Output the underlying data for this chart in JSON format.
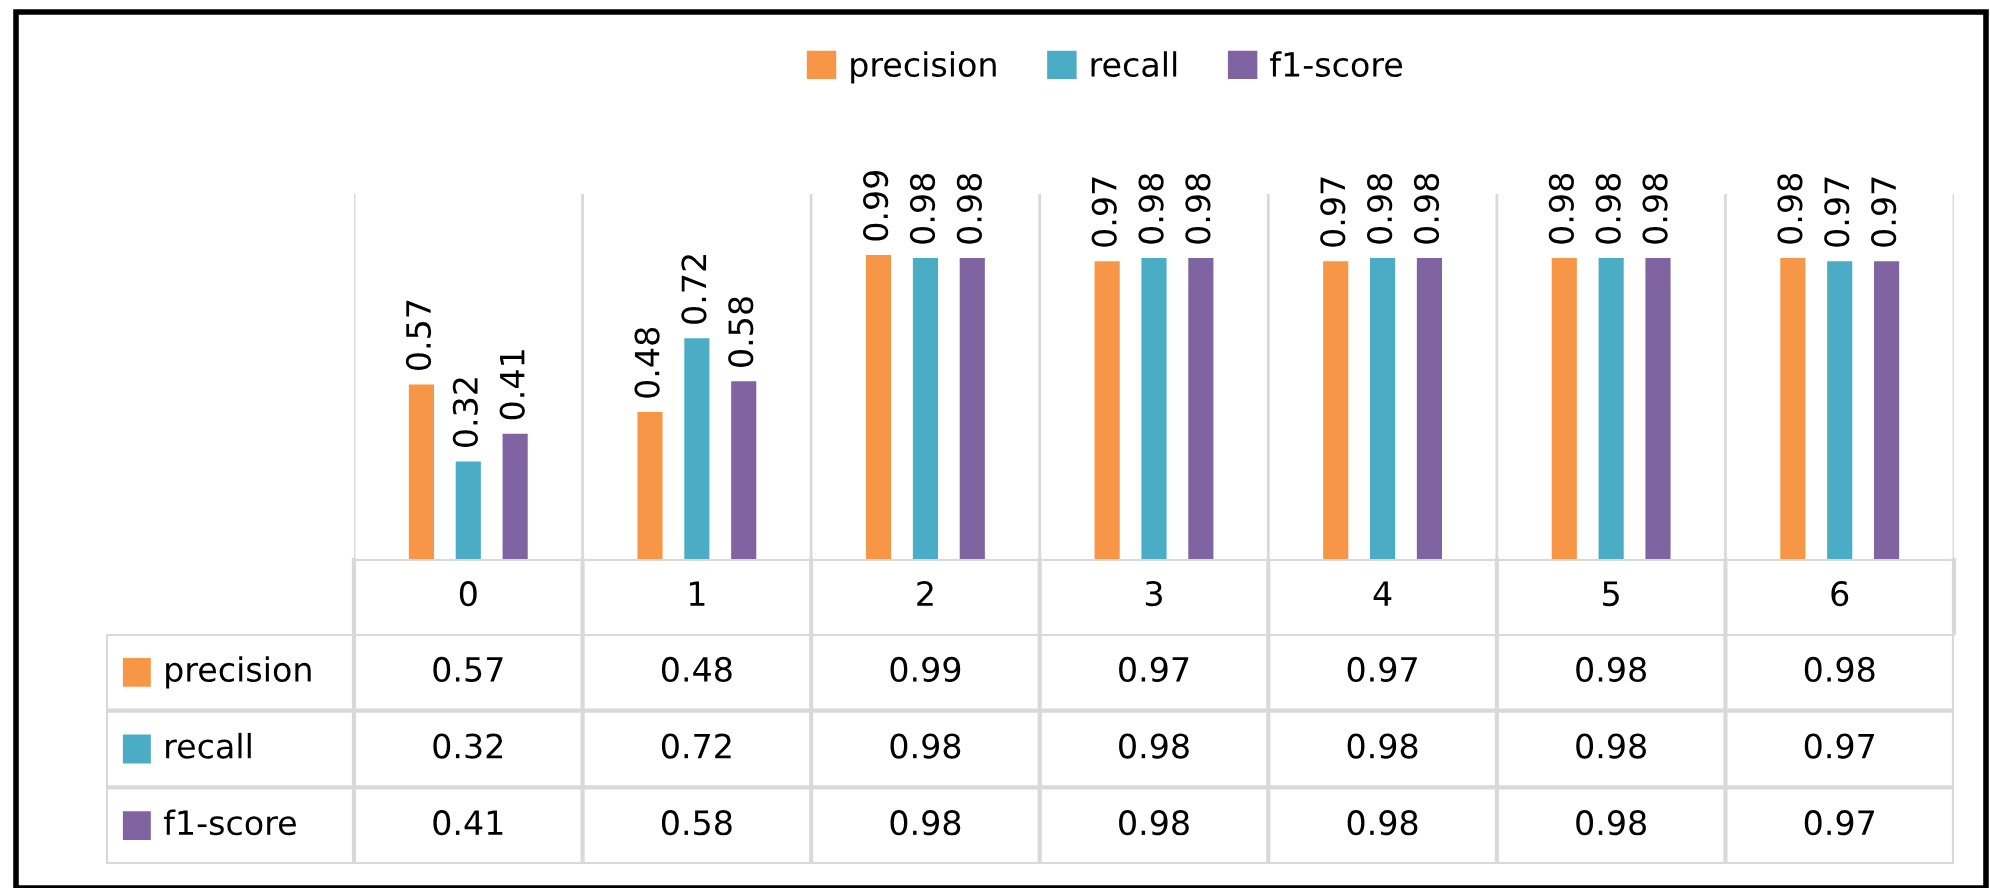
{
  "chart_data": [
    {
      "type": "bar",
      "categories": [
        "0",
        "1",
        "2",
        "3",
        "4",
        "5",
        "6"
      ],
      "series": [
        {
          "name": "precision",
          "color": "#f79646",
          "values": [
            0.57,
            0.48,
            0.99,
            0.97,
            0.97,
            0.98,
            0.98
          ],
          "value_labels": [
            "0.57",
            "0.48",
            "0.99",
            "0.97",
            "0.97",
            "0.98",
            "0.98"
          ]
        },
        {
          "name": "recall",
          "color": "#4bacc6",
          "values": [
            0.32,
            0.72,
            0.98,
            0.98,
            0.98,
            0.98,
            0.97
          ],
          "value_labels": [
            "0.32",
            "0.72",
            "0.98",
            "0.98",
            "0.98",
            "0.98",
            "0.97"
          ]
        },
        {
          "name": "f1-score",
          "color": "#8064a2",
          "values": [
            0.41,
            0.58,
            0.98,
            0.98,
            0.98,
            0.98,
            0.97
          ],
          "value_labels": [
            "0.41",
            "0.58",
            "0.98",
            "0.98",
            "0.98",
            "0.98",
            "0.97"
          ]
        }
      ],
      "legend": "top",
      "grid": "x"
    },
    {
      "type": "other",
      "series": [
        {
          "name": "precision",
          "color": "#f79646"
        },
        {
          "name": "recall",
          "color": "#4bacc6"
        },
        {
          "name": "f1-score",
          "color": "#8064a2"
        }
      ],
      "annotations": [
        "0.57",
        "0.48",
        "0.99",
        "0.97",
        "0.97",
        "0.98",
        "0.98",
        "0.32",
        "0.72",
        "0.98",
        "0.98",
        "0.98",
        "0.98",
        "0.97",
        "0.41",
        "0.58",
        "0.98",
        "0.98",
        "0.98",
        "0.98",
        "0.97"
      ],
      "legend": "left"
    }
  ]
}
